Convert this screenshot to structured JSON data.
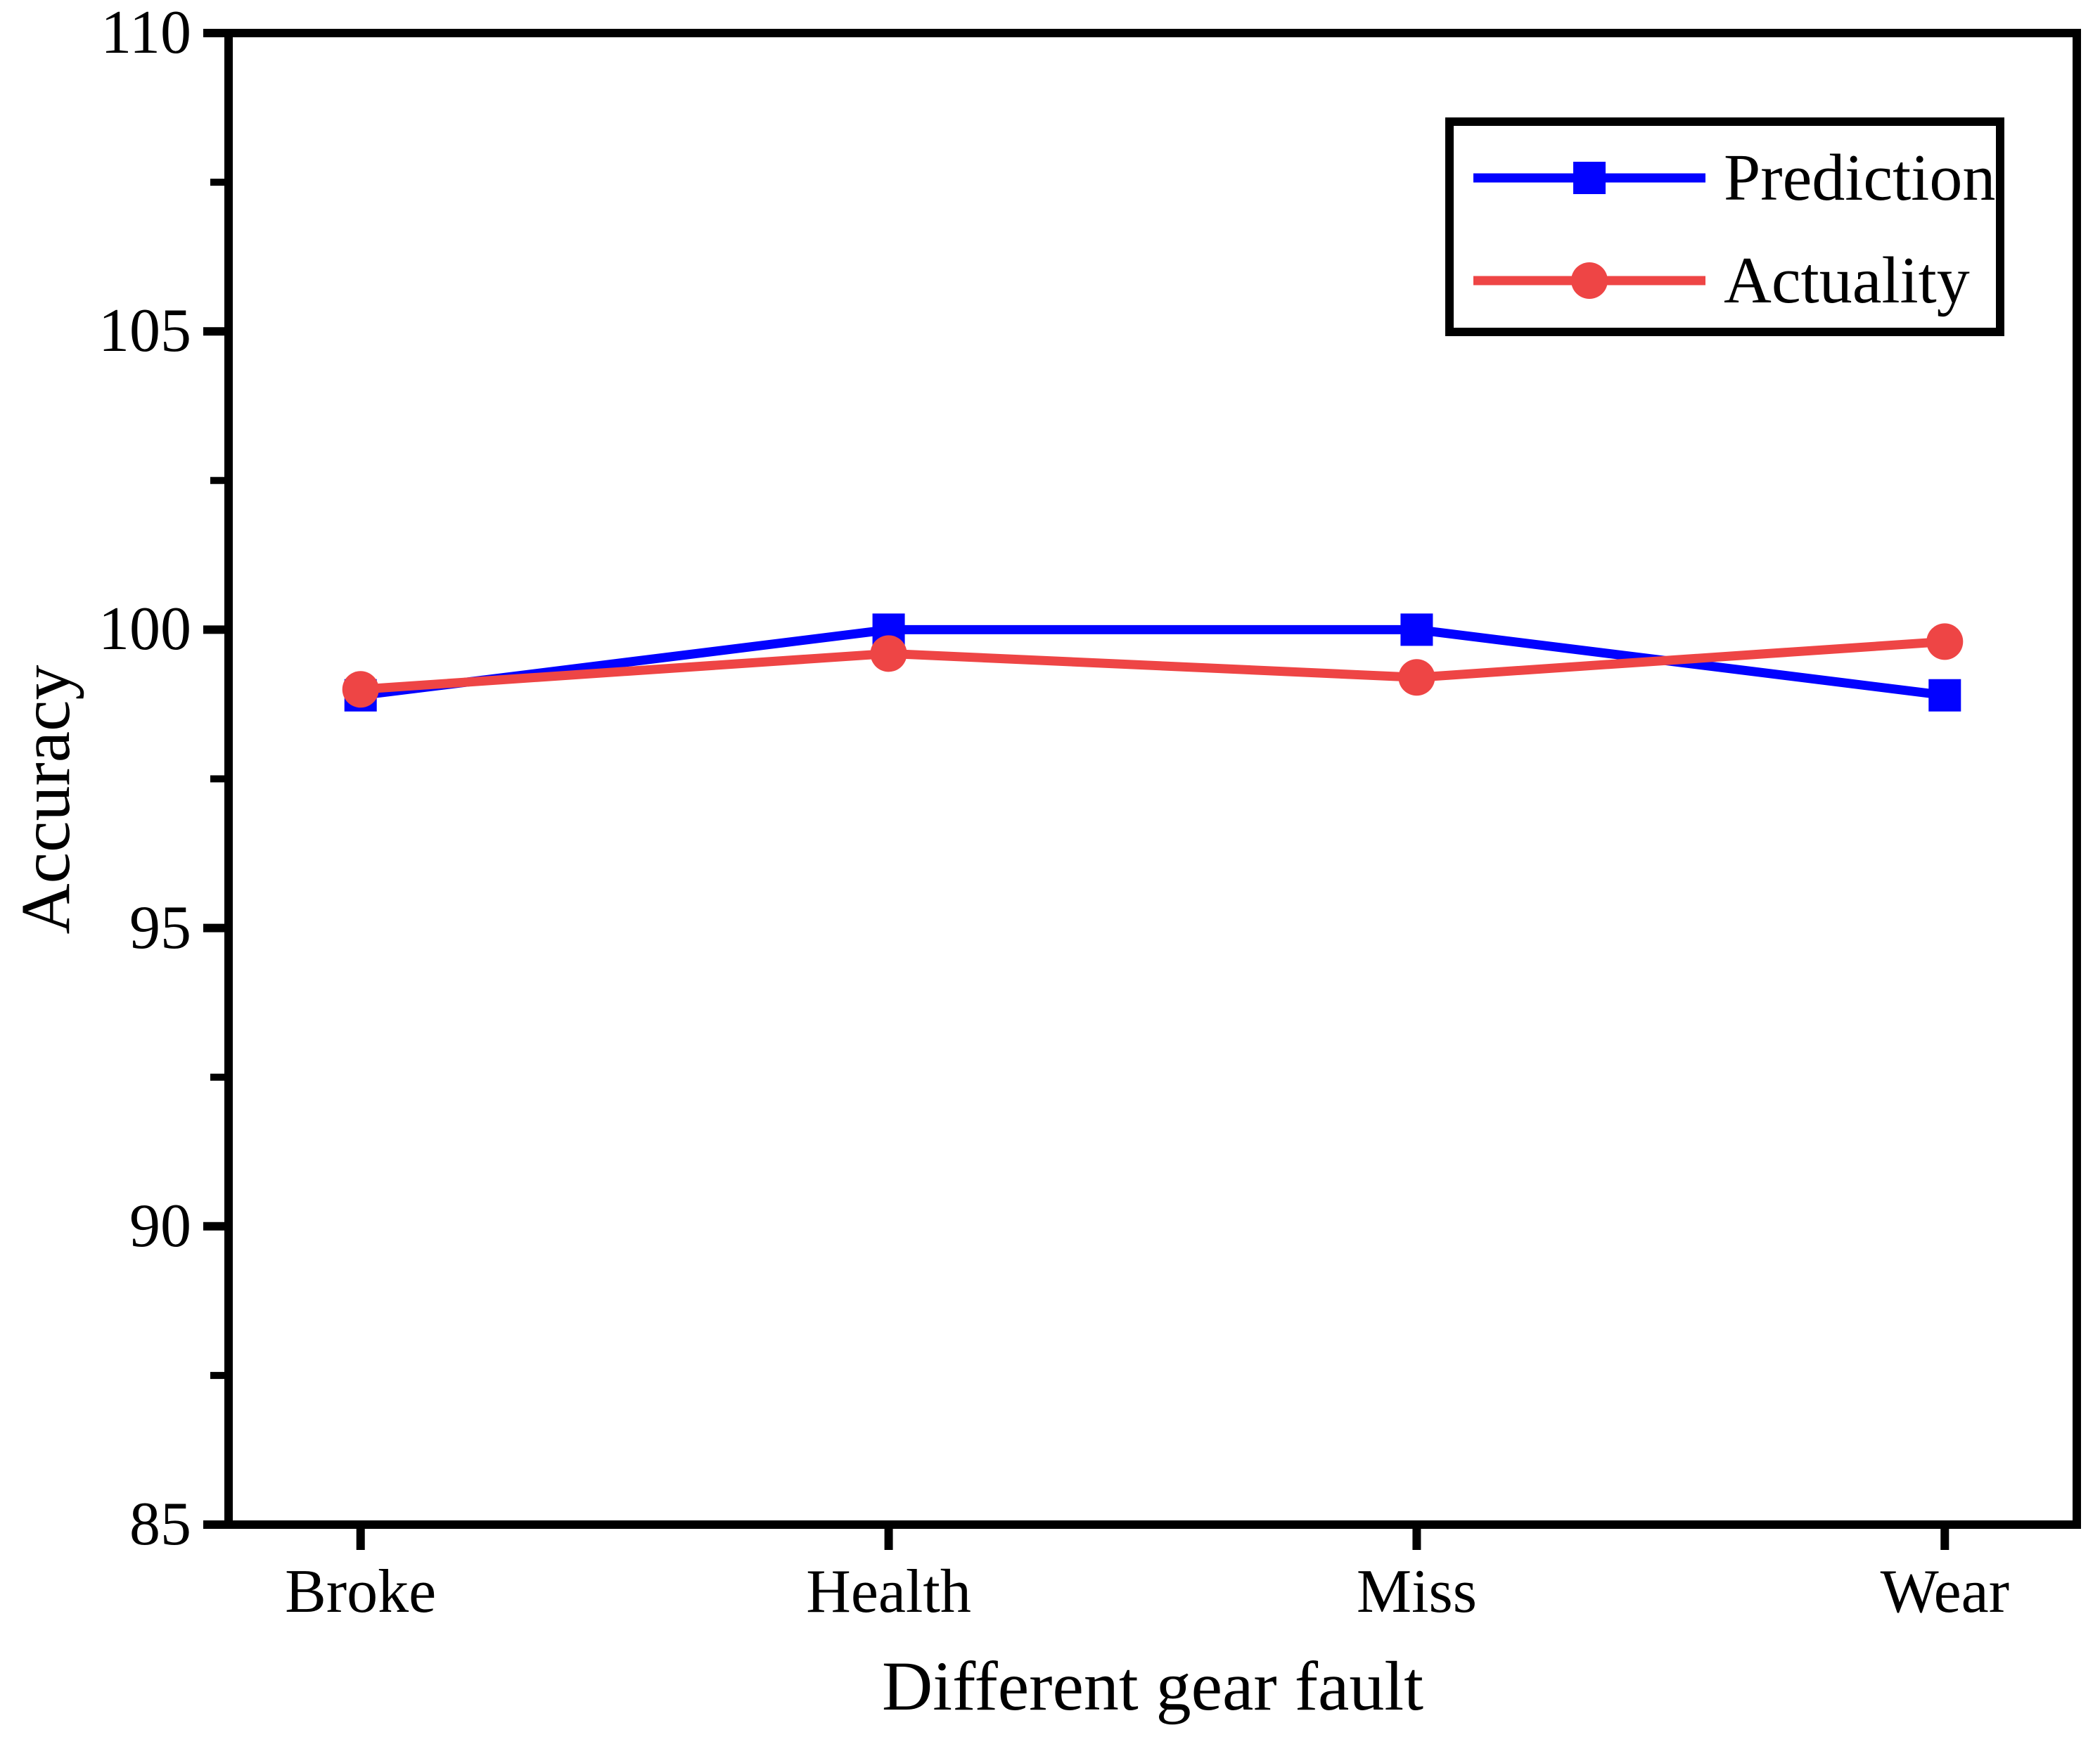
{
  "figure": {
    "background_color": "#ffffff",
    "axis_color": "#000000"
  },
  "chart_data": {
    "type": "line",
    "title": "",
    "xlabel": "Different gear fault",
    "ylabel": "Accuracy",
    "categories": [
      "Broke",
      "Health",
      "Miss",
      "Wear"
    ],
    "series": [
      {
        "name": "Prediction",
        "color": "#0202ff",
        "marker": "square",
        "values": [
          98.9,
          100.0,
          100.0,
          98.9
        ]
      },
      {
        "name": "Actuality",
        "color": "#ee4545",
        "marker": "circle",
        "values": [
          99.0,
          99.6,
          99.2,
          99.8
        ]
      }
    ],
    "ylim": [
      85,
      110
    ],
    "yticks": [
      85,
      90,
      95,
      100,
      105,
      110
    ],
    "yticks_minor": [
      87.5,
      92.5,
      97.5,
      102.5,
      107.5
    ],
    "grid": false,
    "legend_position": "top-right"
  }
}
